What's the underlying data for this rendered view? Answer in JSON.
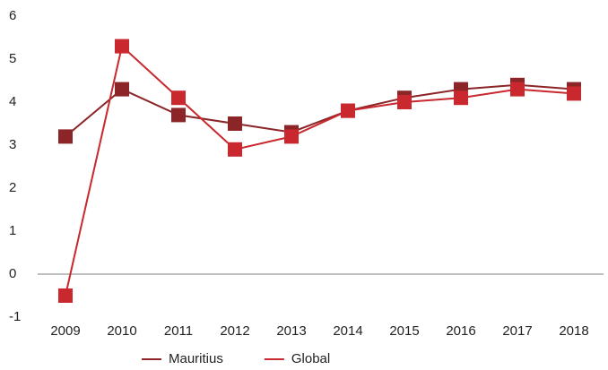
{
  "chart_data": {
    "type": "line",
    "categories": [
      "2009",
      "2010",
      "2011",
      "2012",
      "2013",
      "2014",
      "2015",
      "2016",
      "2017",
      "2018"
    ],
    "series": [
      {
        "name": "Mauritius",
        "color": "#8b2528",
        "values": [
          3.2,
          4.3,
          3.7,
          3.5,
          3.3,
          3.8,
          4.1,
          4.3,
          4.4,
          4.3
        ]
      },
      {
        "name": "Global",
        "color": "#c8282e",
        "values": [
          -0.5,
          5.3,
          4.1,
          2.9,
          3.2,
          3.8,
          4.0,
          4.1,
          4.3,
          4.2
        ]
      }
    ],
    "ylim": [
      -1,
      6
    ],
    "yticks": [
      -1,
      0,
      1,
      2,
      3,
      4,
      5,
      6
    ],
    "legend": "bottom"
  }
}
